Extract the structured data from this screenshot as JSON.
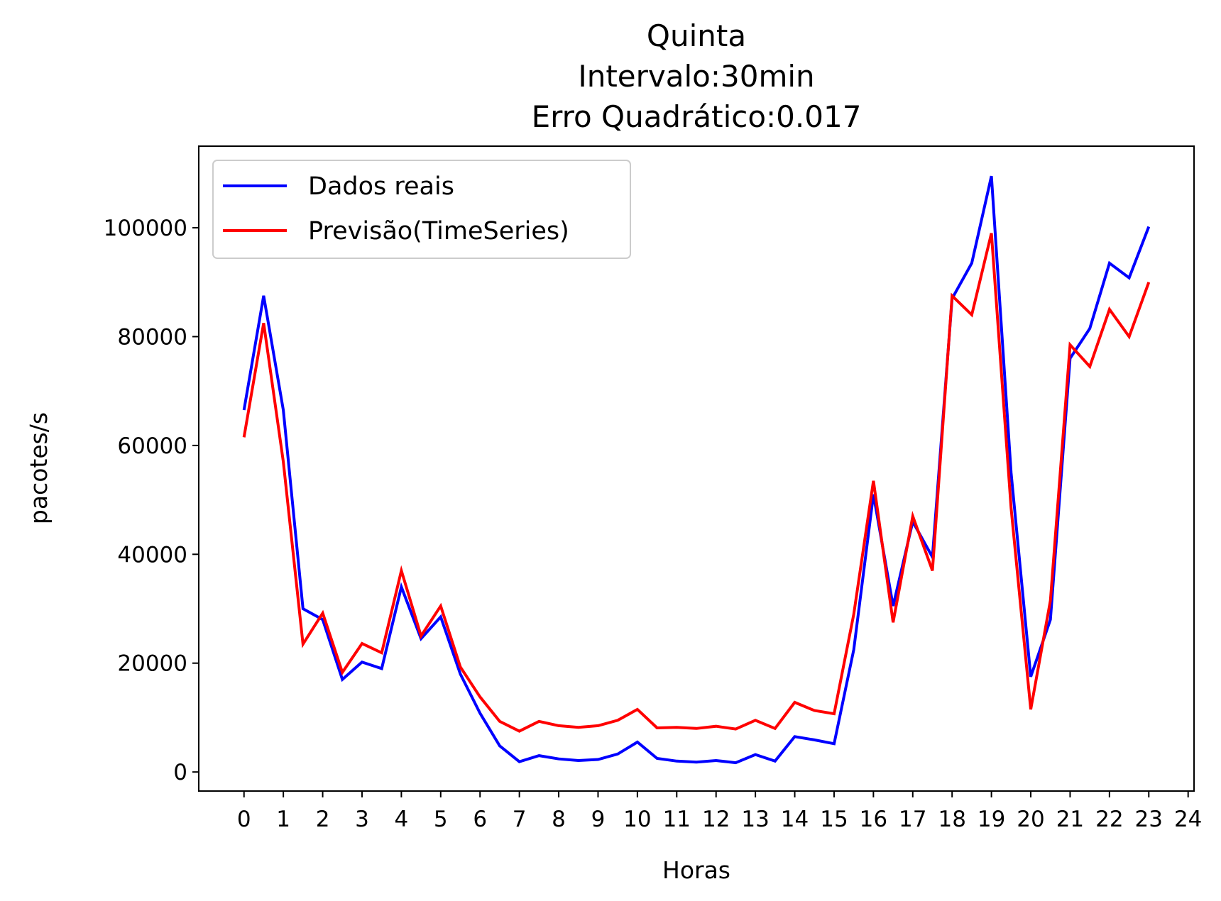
{
  "chart_data": {
    "type": "line",
    "title_lines": [
      "Quinta",
      "Intervalo:30min",
      "Erro Quadrático:0.017"
    ],
    "xlabel": "Horas",
    "ylabel": "pacotes/s",
    "xlim": [
      -1.15,
      24.15
    ],
    "ylim": [
      -3500,
      115000
    ],
    "xticks": [
      0,
      1,
      2,
      3,
      4,
      5,
      6,
      7,
      8,
      9,
      10,
      11,
      12,
      13,
      14,
      15,
      16,
      17,
      18,
      19,
      20,
      21,
      22,
      23,
      24
    ],
    "xtick_labels": [
      "0",
      "1",
      "2",
      "3",
      "4",
      "5",
      "6",
      "7",
      "8",
      "9",
      "10",
      "11",
      "12",
      "13",
      "14",
      "15",
      "16",
      "17",
      "18",
      "19",
      "20",
      "21",
      "22",
      "23",
      "24"
    ],
    "yticks": [
      0,
      20000,
      40000,
      60000,
      80000,
      100000
    ],
    "ytick_labels": [
      "0",
      "20000",
      "40000",
      "60000",
      "80000",
      "100000"
    ],
    "grid": false,
    "legend_position": "top-left",
    "x": [
      0,
      0.5,
      1,
      1.5,
      2,
      2.5,
      3,
      3.5,
      4,
      4.5,
      5,
      5.5,
      6,
      6.5,
      7,
      7.5,
      8,
      8.5,
      9,
      9.5,
      10,
      10.5,
      11,
      11.5,
      12,
      12.5,
      13,
      13.5,
      14,
      14.5,
      15,
      15.5,
      16,
      16.5,
      17,
      17.5,
      18,
      18.5,
      19,
      19.5,
      20,
      20.5,
      21,
      21.5,
      22,
      22.5,
      23
    ],
    "series": [
      {
        "name": "Dados reais",
        "color": "#0000ff",
        "values": [
          66500,
          87500,
          66500,
          30000,
          28000,
          17000,
          20200,
          19000,
          34000,
          24500,
          28500,
          18000,
          10800,
          4800,
          1900,
          3000,
          2400,
          2100,
          2300,
          3300,
          5500,
          2500,
          2000,
          1800,
          2100,
          1700,
          3200,
          2000,
          6500,
          5900,
          5200,
          22500,
          51000,
          30500,
          46000,
          39500,
          87000,
          93500,
          109500,
          55000,
          17500,
          28000,
          76000,
          81500,
          93500,
          90800,
          100200
        ]
      },
      {
        "name": "Previsão(TimeSeries)",
        "color": "#ff0000",
        "values": [
          61500,
          82500,
          57000,
          23500,
          29200,
          18300,
          23600,
          21900,
          37000,
          25000,
          30500,
          19300,
          13800,
          9300,
          7500,
          9300,
          8500,
          8200,
          8500,
          9500,
          11500,
          8100,
          8200,
          8000,
          8400,
          7900,
          9500,
          8000,
          12800,
          11300,
          10700,
          29000,
          53500,
          27500,
          47000,
          37000,
          87500,
          84000,
          99000,
          48500,
          11500,
          31500,
          78500,
          74500,
          85000,
          80000,
          90000
        ]
      }
    ]
  }
}
